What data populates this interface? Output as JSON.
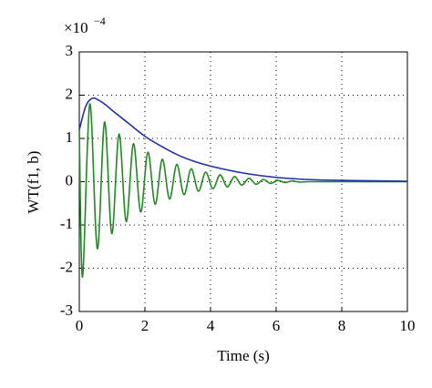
{
  "chart_data": {
    "type": "line",
    "x_label": "Time (s)",
    "y_label": "WT(f1, b)",
    "y_multiplier": {
      "base": "×10",
      "exponent": "−4"
    },
    "xlim": [
      0,
      10
    ],
    "xticks": [
      0,
      2,
      4,
      6,
      8,
      10
    ],
    "ylim": [
      -3,
      3
    ],
    "yticks": [
      -3,
      -2,
      -1,
      0,
      1,
      2,
      3
    ],
    "grid": true,
    "series": [
      {
        "color": "#1f8a1f",
        "x": [
          0,
          0.1,
          0.32,
          0.55,
          0.77,
          0.99,
          1.21,
          1.43,
          1.65,
          1.87,
          2.09,
          2.31,
          2.53,
          2.75,
          2.97,
          3.19,
          3.41,
          3.63,
          3.85,
          4.07,
          4.29,
          4.51,
          4.73,
          4.95,
          5.17,
          5.39,
          5.61,
          5.83,
          6.05,
          6.27,
          6.49,
          6.71,
          7,
          8,
          10
        ],
        "values": [
          1.2,
          -2.2,
          1.8,
          -1.55,
          1.38,
          -1.2,
          1.1,
          -0.92,
          0.88,
          -0.7,
          0.68,
          -0.52,
          0.52,
          -0.4,
          0.4,
          -0.3,
          0.3,
          -0.22,
          0.22,
          -0.16,
          0.16,
          -0.12,
          0.12,
          -0.08,
          0.08,
          -0.06,
          0.05,
          -0.04,
          0.03,
          -0.02,
          0.02,
          -0.01,
          0,
          0,
          0
        ]
      },
      {
        "color": "#1f2fa8",
        "x": [
          0,
          0.2,
          0.4,
          0.6,
          0.8,
          1,
          1.5,
          2,
          2.5,
          3,
          3.5,
          4,
          5,
          6,
          7,
          8,
          9,
          10
        ],
        "values": [
          1.2,
          1.75,
          1.93,
          1.88,
          1.78,
          1.65,
          1.35,
          1.05,
          0.82,
          0.62,
          0.47,
          0.36,
          0.2,
          0.1,
          0.05,
          0.03,
          0.02,
          0.01
        ]
      }
    ]
  }
}
